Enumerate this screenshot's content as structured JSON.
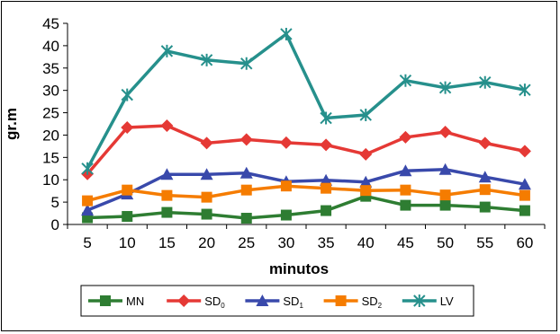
{
  "chart_data": {
    "type": "line",
    "xlabel": "minutos",
    "ylabel": "gr.m",
    "ylim": [
      0,
      45
    ],
    "yticks": [
      0,
      5,
      10,
      15,
      20,
      25,
      30,
      35,
      40,
      45
    ],
    "x": [
      5,
      10,
      15,
      20,
      25,
      30,
      35,
      40,
      45,
      50,
      55,
      60
    ],
    "grid": false,
    "legend": "bottom",
    "series": [
      {
        "name": "MN",
        "label_main": "MN",
        "label_sub": "",
        "color": "#2e7d32",
        "marker": "square",
        "values": [
          1.5,
          1.8,
          2.7,
          2.3,
          1.4,
          2.1,
          3.1,
          6.3,
          4.3,
          4.3,
          3.9,
          3.1
        ]
      },
      {
        "name": "SD0",
        "label_main": "SD",
        "label_sub": "0",
        "color": "#e53935",
        "marker": "diamond",
        "values": [
          11.3,
          21.7,
          22.1,
          18.2,
          19.0,
          18.3,
          17.8,
          15.7,
          19.5,
          20.7,
          18.2,
          16.4
        ]
      },
      {
        "name": "SD1",
        "label_main": "SD",
        "label_sub": "1",
        "color": "#3949ab",
        "marker": "triangle",
        "values": [
          3.2,
          6.8,
          11.2,
          11.2,
          11.5,
          9.6,
          9.9,
          9.5,
          12.0,
          12.3,
          10.6,
          9.0
        ]
      },
      {
        "name": "SD2",
        "label_main": "SD",
        "label_sub": "2",
        "color": "#f57c00",
        "marker": "square",
        "values": [
          5.3,
          7.7,
          6.5,
          6.1,
          7.7,
          8.6,
          8.1,
          7.6,
          7.7,
          6.6,
          7.8,
          6.5
        ]
      },
      {
        "name": "LV",
        "label_main": "LV",
        "label_sub": "",
        "color": "#26908c",
        "marker": "star",
        "values": [
          12.5,
          29.0,
          38.8,
          36.8,
          36.0,
          42.6,
          23.8,
          24.5,
          32.2,
          30.6,
          31.8,
          30.1
        ]
      }
    ]
  }
}
